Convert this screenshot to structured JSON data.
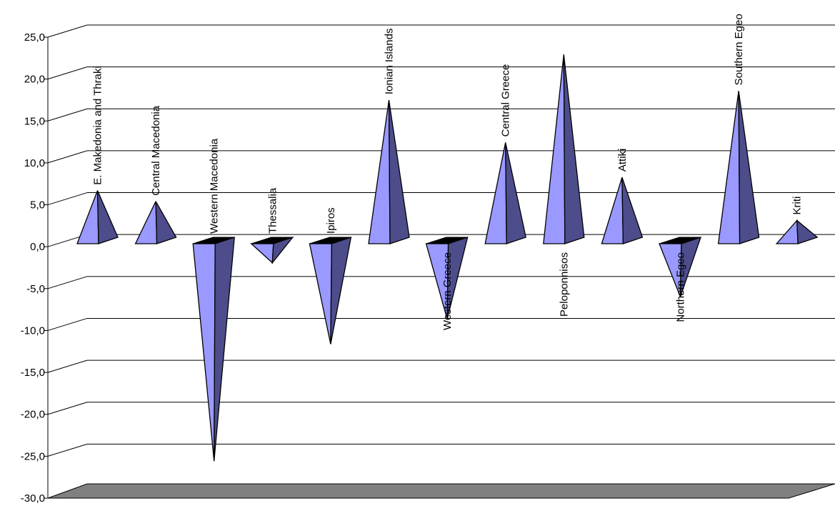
{
  "chart_data": {
    "type": "bar",
    "style": "3d-pyramid",
    "categories": [
      "E. Makedonia and Thraki",
      "Central Macedonia",
      "Western Macedonia",
      "Thessalia",
      "Ipiros",
      "Ionian Islands",
      "Western Greece",
      "Central Greece",
      "Peloponnisos",
      "Attiki",
      "Northern Egeo",
      "Southern Egeo",
      "Kriti"
    ],
    "values": [
      6.4,
      5.1,
      -26.2,
      -2.3,
      -12.1,
      17.3,
      -9.1,
      12.2,
      22.8,
      8.0,
      -6.4,
      18.4,
      2.8
    ],
    "ylim": [
      -30,
      25
    ],
    "yticks": [
      "-30,0",
      "-25,0",
      "-20,0",
      "-15,0",
      "-10,0",
      "-5,0",
      "0,0",
      "5,0",
      "10,0",
      "15,0",
      "20,0",
      "25,0"
    ],
    "grid": true,
    "legend": "none",
    "colors": {
      "front": "#9999ff",
      "side": "#4d4d8c",
      "top": "#000000",
      "floor": "#808080",
      "grid": "#000000"
    }
  }
}
